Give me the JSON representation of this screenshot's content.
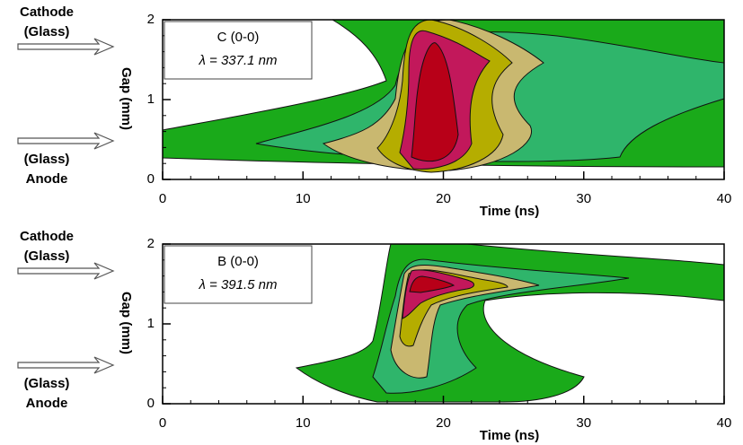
{
  "chart_data": [
    {
      "type": "contour",
      "label": "C (0-0)",
      "annotation": "λ = 337.1 nm",
      "xlabel": "Time (ns)",
      "ylabel": "Gap (mm)",
      "xlim": [
        0,
        40
      ],
      "xticks": [
        0,
        10,
        20,
        30,
        40
      ],
      "ylim": [
        0,
        2
      ],
      "yticks": [
        0,
        1,
        2
      ],
      "side_labels": {
        "top": [
          "Cathode",
          "(Glass)"
        ],
        "bottom": [
          "(Glass)",
          "Anode"
        ]
      }
    },
    {
      "type": "contour",
      "label": "B (0-0)",
      "annotation": "λ = 391.5 nm",
      "xlabel": "Time (ns)",
      "ylabel": "Gap (mm)",
      "xlim": [
        0,
        40
      ],
      "xticks": [
        0,
        10,
        20,
        30,
        40
      ],
      "ylim": [
        0,
        2
      ],
      "yticks": [
        0,
        1,
        2
      ],
      "side_labels": {
        "top": [
          "Cathode",
          "(Glass)"
        ],
        "bottom": [
          "(Glass)",
          "Anode"
        ]
      }
    }
  ]
}
